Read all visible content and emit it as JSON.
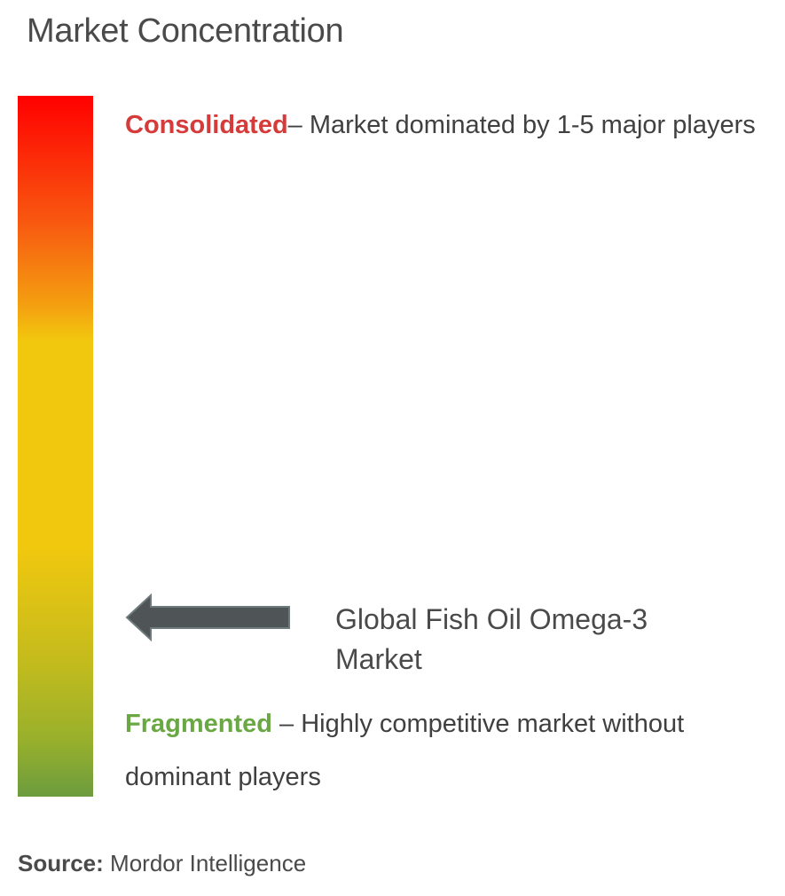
{
  "title": "Market Concentration",
  "chart_data": {
    "type": "concentration-scale",
    "scale": {
      "top_color": "#ff0000",
      "middle_color": "#f2c80e",
      "bottom_color": "#6c9c3e"
    },
    "consolidated": {
      "label": "Consolidated",
      "description": "– Market dominated by 1-5 major players",
      "color": "#d63b3b"
    },
    "fragmented": {
      "label": "Fragmented",
      "description": " – Highly competitive market without dominant players",
      "color": "#6aa843"
    },
    "marker": {
      "label": "Global Fish Oil Omega-3 Market",
      "position_fraction_from_top": 0.75,
      "arrow_color": "#4f5557"
    }
  },
  "source": {
    "label": "Source:",
    "value": " Mordor Intelligence"
  }
}
